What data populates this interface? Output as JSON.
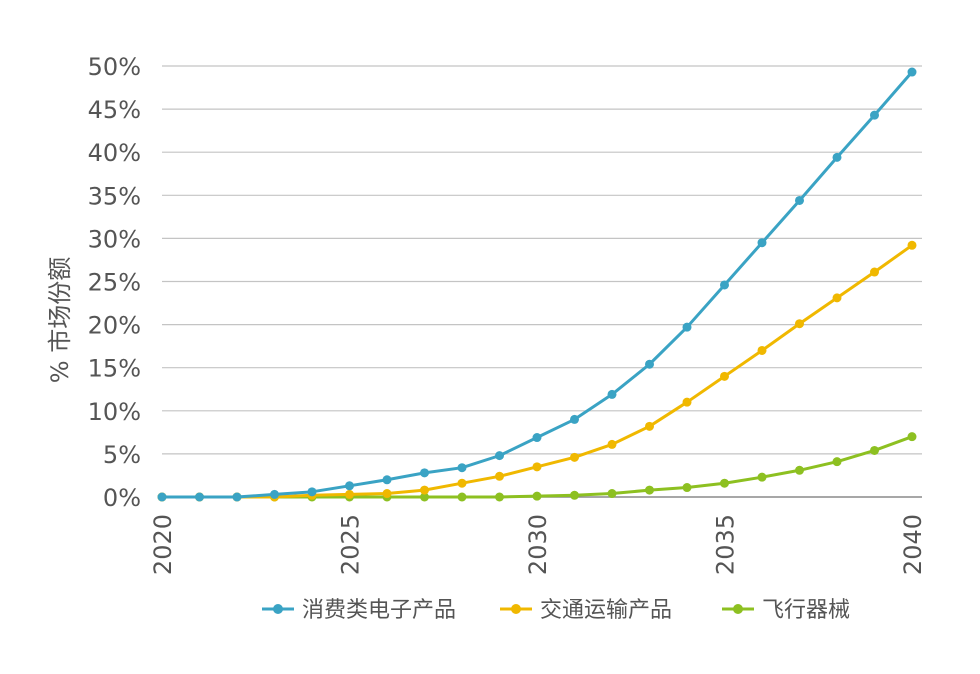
{
  "chart_data": {
    "type": "line",
    "title": "",
    "xlabel": "",
    "ylabel": "% 市场份额",
    "x": [
      2020,
      2021,
      2022,
      2023,
      2024,
      2025,
      2026,
      2027,
      2028,
      2029,
      2030,
      2031,
      2032,
      2033,
      2034,
      2035,
      2036,
      2037,
      2038,
      2039,
      2040
    ],
    "xticks": [
      "2020",
      "2025",
      "2030",
      "2035",
      "2040"
    ],
    "xlim": [
      2020,
      2040
    ],
    "yticks": [
      "0%",
      "5%",
      "10%",
      "15%",
      "20%",
      "25%",
      "30%",
      "35%",
      "40%",
      "45%",
      "50%"
    ],
    "ylim": [
      0,
      50
    ],
    "grid": true,
    "legend_position": "bottom",
    "series": [
      {
        "name": "消费类电子产品",
        "color": "#3aa3c4",
        "values": [
          0.0,
          0.0,
          0.0,
          0.3,
          0.6,
          1.3,
          2.0,
          2.8,
          3.4,
          4.8,
          6.9,
          9.0,
          11.9,
          15.4,
          19.7,
          24.6,
          29.5,
          34.4,
          39.4,
          44.3,
          49.3
        ]
      },
      {
        "name": "交通运输产品",
        "color": "#f0b800",
        "values": [
          0.0,
          0.0,
          0.0,
          0.0,
          0.2,
          0.3,
          0.4,
          0.8,
          1.6,
          2.4,
          3.5,
          4.6,
          6.1,
          8.2,
          11.0,
          14.0,
          17.0,
          20.1,
          23.1,
          26.1,
          29.2
        ]
      },
      {
        "name": "飞行器械",
        "color": "#8dc021",
        "values": [
          0.0,
          0.0,
          0.0,
          0.0,
          0.0,
          0.0,
          0.0,
          0.0,
          0.0,
          0.0,
          0.1,
          0.2,
          0.4,
          0.8,
          1.1,
          1.6,
          2.3,
          3.1,
          4.1,
          5.4,
          7.0
        ]
      }
    ]
  }
}
